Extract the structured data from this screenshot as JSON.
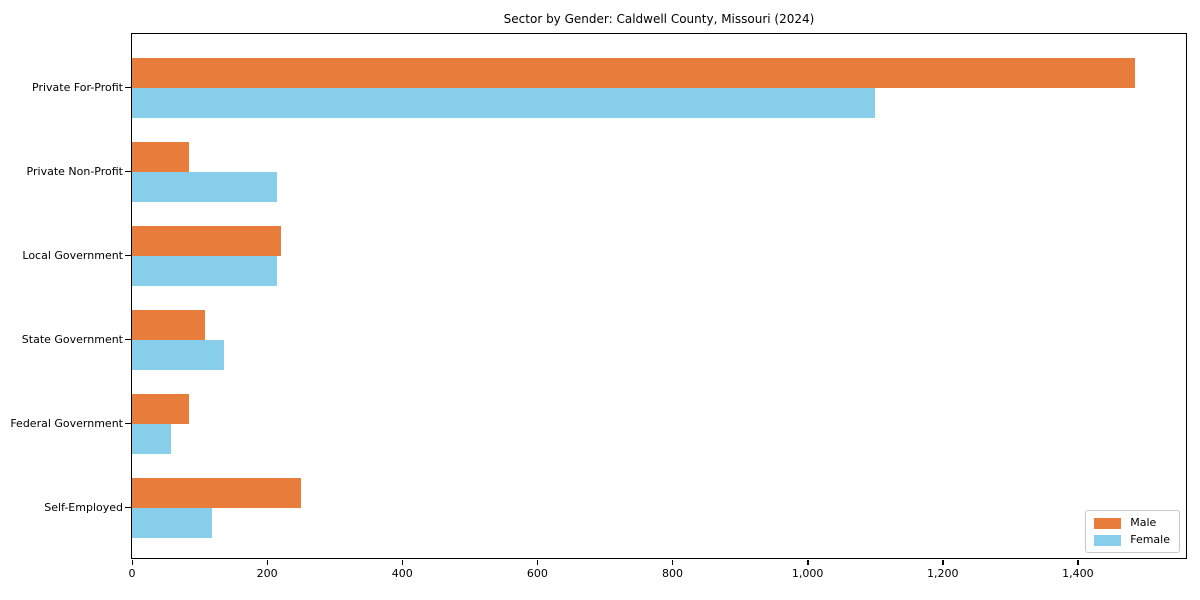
{
  "title": "Sector by Gender: Caldwell County, Missouri (2024)",
  "chart_data": {
    "type": "bar",
    "orientation": "horizontal",
    "title": "Sector by Gender: Caldwell County, Missouri (2024)",
    "xlabel": "",
    "ylabel": "",
    "categories": [
      "Private For-Profit",
      "Private Non-Profit",
      "Local Government",
      "State Government",
      "Federal Government",
      "Self-Employed"
    ],
    "series": [
      {
        "name": "Male",
        "color": "#e87d3b",
        "values": [
          1485,
          85,
          220,
          108,
          84,
          250
        ]
      },
      {
        "name": "Female",
        "color": "#87ceea",
        "values": [
          1100,
          215,
          215,
          136,
          57,
          119
        ]
      }
    ],
    "xlim": [
      0,
      1560
    ],
    "x_ticks": [
      0,
      200,
      400,
      600,
      800,
      1000,
      1200,
      1400
    ],
    "x_tick_labels": [
      "0",
      "200",
      "400",
      "600",
      "800",
      "1,000",
      "1,200",
      "1,400"
    ],
    "grid": false,
    "legend": {
      "position": "lower right"
    },
    "colors": {
      "spine": "#000000",
      "background": "#ffffff",
      "legend_border": "#c9c9c9"
    }
  }
}
